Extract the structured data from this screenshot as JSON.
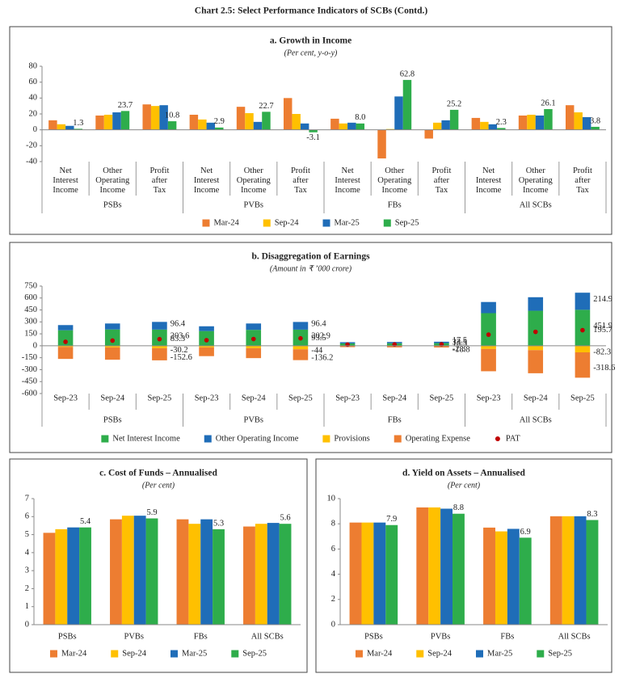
{
  "title": "Chart 2.5: Select Performance Indicators of SCBs (Contd.)",
  "chart_data": [
    {
      "type": "bar",
      "title": "a. Growth in Income",
      "subtitle": "(Per cent, y-o-y)",
      "categories": [
        "Net Interest Income",
        "Other Operating Income",
        "Profit after Tax",
        "Net Interest Income",
        "Other Operating Income",
        "Profit after Tax",
        "Net Interest Income",
        "Other Operating Income",
        "Profit after Tax",
        "Net Interest Income",
        "Other Operating Income",
        "Profit after Tax"
      ],
      "groups": [
        "PSBs",
        "PVBs",
        "FBs",
        "All SCBs"
      ],
      "series": [
        {
          "name": "Mar-24",
          "color": "#ED7D31",
          "values": [
            12,
            18,
            32,
            19,
            29,
            40,
            14,
            -36,
            -11,
            15,
            18,
            31
          ]
        },
        {
          "name": "Sep-24",
          "color": "#FFC000",
          "values": [
            7,
            19,
            30,
            13,
            21,
            20,
            8,
            1,
            9,
            10,
            19,
            22
          ]
        },
        {
          "name": "Mar-25",
          "color": "#1F6DB8",
          "values": [
            5,
            22,
            31,
            9,
            10,
            8,
            9,
            42,
            12,
            7,
            18,
            16
          ]
        },
        {
          "name": "Sep-25",
          "color": "#2EAD4B",
          "values": [
            1.3,
            23.7,
            10.8,
            2.9,
            22.7,
            -3.1,
            8.0,
            62.8,
            25.2,
            2.3,
            26.1,
            3.8
          ],
          "value_labels": [
            "1.3",
            "23.7",
            "10.8",
            "2.9",
            "22.7",
            "-3.1",
            "8.0",
            "62.8",
            "25.2",
            "2.3",
            "26.1",
            "3.8"
          ]
        }
      ],
      "ylim": [
        -40,
        80
      ],
      "yticks": [
        -40,
        -20,
        0,
        20,
        40,
        60,
        80
      ],
      "grid": false,
      "legend": "bottom"
    },
    {
      "type": "stacked_bar",
      "title": "b. Disaggregation of Earnings",
      "subtitle": "(Amount in ₹ ’000 crore)",
      "categories": [
        "Sep-23",
        "Sep-24",
        "Sep-25",
        "Sep-23",
        "Sep-24",
        "Sep-25",
        "Sep-23",
        "Sep-24",
        "Sep-25",
        "Sep-23",
        "Sep-24",
        "Sep-25"
      ],
      "groups": [
        "PSBs",
        "PVBs",
        "FBs",
        "All SCBs"
      ],
      "series": [
        {
          "name": "Net Interest Income",
          "color": "#2EAD4B",
          "values": [
            195,
            205,
            203.6,
            185,
            200,
            202.9,
            30,
            32,
            33.5,
            410,
            440,
            451.9
          ],
          "value_labels": [
            null,
            null,
            "203.6",
            null,
            null,
            "202.9",
            null,
            null,
            "33.5",
            null,
            null,
            "451.9"
          ]
        },
        {
          "name": "Other Operating Income",
          "color": "#1F6DB8",
          "values": [
            65,
            75,
            96.4,
            60,
            80,
            96.4,
            15,
            16,
            17.5,
            140,
            170,
            214.9
          ],
          "value_labels": [
            null,
            null,
            "96.4",
            null,
            null,
            "96.4",
            null,
            null,
            "17.5",
            null,
            null,
            "214.9"
          ]
        },
        {
          "name": "Provisions",
          "color": "#FFC000",
          "values": [
            -15,
            -20,
            -30.2,
            -20,
            -30,
            -44,
            -2,
            -3,
            -2.3,
            -40,
            -55,
            -82.3
          ],
          "value_labels": [
            null,
            null,
            "-30.2",
            null,
            null,
            "-44",
            null,
            null,
            "-2.3",
            null,
            null,
            "-82.3"
          ]
        },
        {
          "name": "Operating Expense",
          "color": "#ED7D31",
          "values": [
            -150,
            -155,
            -152.6,
            -110,
            -125,
            -136.2,
            -15,
            -17,
            -18.8,
            -280,
            -290,
            -318.6
          ],
          "value_labels": [
            null,
            null,
            "-152.6",
            null,
            null,
            "-136.2",
            null,
            null,
            "-18.8",
            null,
            null,
            "-318.6"
          ]
        },
        {
          "name": "PAT",
          "color": "#C00000",
          "type": "scatter",
          "values": [
            50,
            65,
            83.3,
            70,
            85,
            93.5,
            15,
            17,
            18.3,
            140,
            175,
            195.7
          ],
          "value_labels": [
            null,
            null,
            "83.3",
            null,
            null,
            "93.5",
            null,
            null,
            "18.3",
            null,
            null,
            "195.7"
          ]
        }
      ],
      "ylim": [
        -600,
        750
      ],
      "yticks": [
        -600,
        -450,
        -300,
        -150,
        0,
        150,
        300,
        450,
        600,
        750
      ],
      "grid": false,
      "legend": "bottom"
    },
    {
      "type": "bar",
      "title": "c. Cost of Funds – Annualised",
      "subtitle": "(Per cent)",
      "categories": [
        "PSBs",
        "PVBs",
        "FBs",
        "All SCBs"
      ],
      "series": [
        {
          "name": "Mar-24",
          "color": "#ED7D31",
          "values": [
            5.1,
            5.85,
            5.85,
            5.45
          ]
        },
        {
          "name": "Sep-24",
          "color": "#FFC000",
          "values": [
            5.3,
            6.05,
            5.6,
            5.6
          ]
        },
        {
          "name": "Mar-25",
          "color": "#1F6DB8",
          "values": [
            5.4,
            6.05,
            5.85,
            5.65
          ]
        },
        {
          "name": "Sep-25",
          "color": "#2EAD4B",
          "values": [
            5.4,
            5.9,
            5.3,
            5.6
          ],
          "value_labels": [
            "5.4",
            "5.9",
            "5.3",
            "5.6"
          ]
        }
      ],
      "ylim": [
        0,
        7
      ],
      "yticks": [
        0,
        1,
        2,
        3,
        4,
        5,
        6,
        7
      ],
      "grid": false,
      "legend": "bottom"
    },
    {
      "type": "bar",
      "title": "d. Yield on Assets – Annualised",
      "subtitle": "(Per cent)",
      "categories": [
        "PSBs",
        "PVBs",
        "FBs",
        "All SCBs"
      ],
      "series": [
        {
          "name": "Mar-24",
          "color": "#ED7D31",
          "values": [
            8.1,
            9.3,
            7.7,
            8.6
          ]
        },
        {
          "name": "Sep-24",
          "color": "#FFC000",
          "values": [
            8.1,
            9.3,
            7.4,
            8.6
          ]
        },
        {
          "name": "Mar-25",
          "color": "#1F6DB8",
          "values": [
            8.1,
            9.2,
            7.6,
            8.6
          ]
        },
        {
          "name": "Sep-25",
          "color": "#2EAD4B",
          "values": [
            7.9,
            8.8,
            6.9,
            8.3
          ],
          "value_labels": [
            "7.9",
            "8.8",
            "6.9",
            "8.3"
          ]
        }
      ],
      "ylim": [
        0,
        10
      ],
      "yticks": [
        0,
        2,
        4,
        6,
        8,
        10
      ],
      "grid": false,
      "legend": "bottom"
    }
  ]
}
